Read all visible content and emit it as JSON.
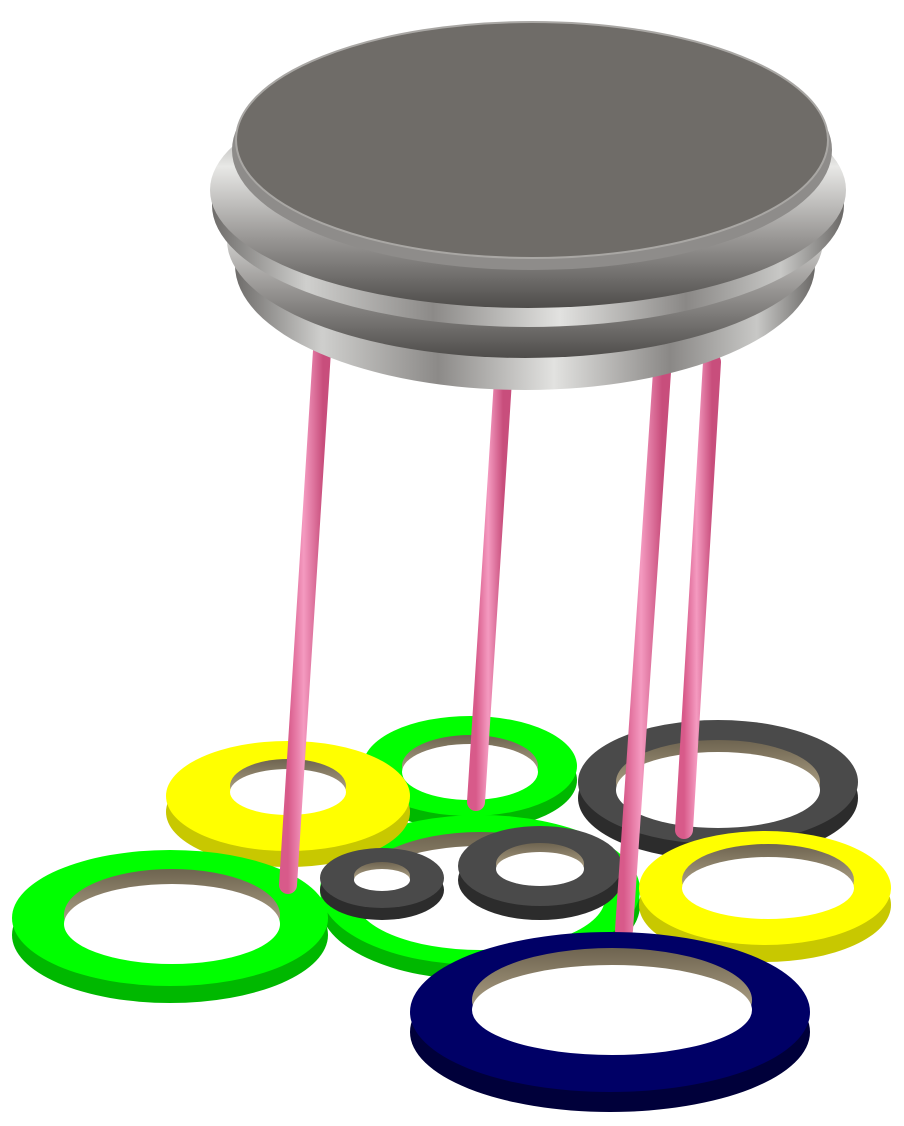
{
  "scene": {
    "background": "#ffffff",
    "components": {
      "cap": {
        "top_color": "#6f6c68",
        "body_color": "#9a9896",
        "highlight_color": "#d6d6d4"
      },
      "leads": {
        "count": 4,
        "color": "#ee7aa6"
      },
      "rings": [
        {
          "name": "yellow-ring-left",
          "color": "#ffff00"
        },
        {
          "name": "green-ring-top",
          "color": "#00ff00"
        },
        {
          "name": "dark-ring-right",
          "color": "#4a4a4a"
        },
        {
          "name": "green-ring-left",
          "color": "#00ff00"
        },
        {
          "name": "green-ring-middle",
          "color": "#00ff00"
        },
        {
          "name": "small-dark-ring",
          "color": "#4a4a4a"
        },
        {
          "name": "medium-dark-ring",
          "color": "#4a4a4a"
        },
        {
          "name": "yellow-ring-right",
          "color": "#ffff00"
        },
        {
          "name": "navy-ring",
          "color": "#000066"
        }
      ]
    }
  }
}
